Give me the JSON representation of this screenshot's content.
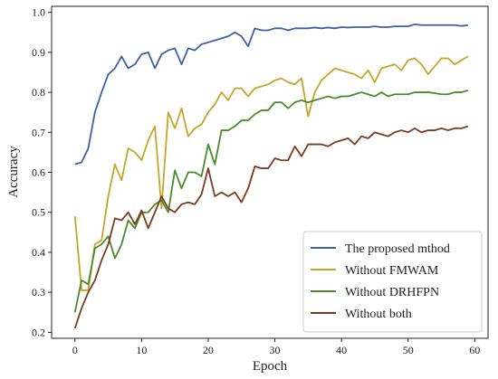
{
  "chart_data": {
    "type": "line",
    "xlabel": "Epoch",
    "ylabel": "Accuracy",
    "xlim": [
      -3.5,
      62
    ],
    "ylim": [
      0.185,
      1.015
    ],
    "xticks": [
      0,
      10,
      20,
      30,
      40,
      50,
      60
    ],
    "yticks": [
      0.2,
      0.3,
      0.4,
      0.5,
      0.6,
      0.7,
      0.8,
      0.9,
      1.0
    ],
    "ytick_labels": [
      "0.2",
      "0.3",
      "0.4",
      "0.5",
      "0.6",
      "0.7",
      "0.8",
      "0.9",
      "1.0"
    ],
    "grid": false,
    "legend_position": "bottom-right",
    "x": [
      0,
      1,
      2,
      3,
      4,
      5,
      6,
      7,
      8,
      9,
      10,
      11,
      12,
      13,
      14,
      15,
      16,
      17,
      18,
      19,
      20,
      21,
      22,
      23,
      24,
      25,
      26,
      27,
      28,
      29,
      30,
      31,
      32,
      33,
      34,
      35,
      36,
      37,
      38,
      39,
      40,
      41,
      42,
      43,
      44,
      45,
      46,
      47,
      48,
      49,
      50,
      51,
      52,
      53,
      54,
      55,
      56,
      57,
      58,
      59
    ],
    "series": [
      {
        "name": "The proposed mthod",
        "color": "#3f5ea8",
        "values": [
          0.62,
          0.625,
          0.66,
          0.75,
          0.8,
          0.845,
          0.86,
          0.89,
          0.86,
          0.87,
          0.895,
          0.9,
          0.86,
          0.895,
          0.905,
          0.91,
          0.87,
          0.91,
          0.905,
          0.92,
          0.925,
          0.93,
          0.935,
          0.94,
          0.95,
          0.94,
          0.915,
          0.96,
          0.955,
          0.955,
          0.96,
          0.96,
          0.955,
          0.96,
          0.96,
          0.96,
          0.962,
          0.96,
          0.962,
          0.96,
          0.963,
          0.962,
          0.963,
          0.963,
          0.963,
          0.965,
          0.963,
          0.963,
          0.965,
          0.965,
          0.965,
          0.97,
          0.968,
          0.968,
          0.968,
          0.968,
          0.968,
          0.968,
          0.966,
          0.968
        ]
      },
      {
        "name": "Without FMWAM",
        "color": "#c6a42a",
        "values": [
          0.49,
          0.305,
          0.305,
          0.42,
          0.43,
          0.54,
          0.62,
          0.58,
          0.66,
          0.65,
          0.63,
          0.68,
          0.715,
          0.51,
          0.75,
          0.71,
          0.76,
          0.69,
          0.71,
          0.72,
          0.75,
          0.77,
          0.8,
          0.78,
          0.81,
          0.81,
          0.79,
          0.81,
          0.815,
          0.82,
          0.83,
          0.835,
          0.825,
          0.82,
          0.835,
          0.74,
          0.8,
          0.83,
          0.845,
          0.86,
          0.855,
          0.85,
          0.845,
          0.835,
          0.855,
          0.825,
          0.86,
          0.865,
          0.87,
          0.855,
          0.88,
          0.885,
          0.87,
          0.845,
          0.865,
          0.885,
          0.885,
          0.87,
          0.88,
          0.89
        ]
      },
      {
        "name": "Without DRHFPN",
        "color": "#4a8a2a",
        "values": [
          0.25,
          0.33,
          0.32,
          0.41,
          0.42,
          0.44,
          0.385,
          0.42,
          0.48,
          0.46,
          0.5,
          0.5,
          0.52,
          0.53,
          0.5,
          0.605,
          0.56,
          0.6,
          0.6,
          0.59,
          0.67,
          0.62,
          0.705,
          0.705,
          0.715,
          0.73,
          0.73,
          0.745,
          0.755,
          0.755,
          0.775,
          0.775,
          0.76,
          0.775,
          0.78,
          0.775,
          0.78,
          0.785,
          0.79,
          0.785,
          0.79,
          0.79,
          0.795,
          0.8,
          0.795,
          0.79,
          0.8,
          0.79,
          0.795,
          0.795,
          0.795,
          0.8,
          0.8,
          0.8,
          0.798,
          0.795,
          0.795,
          0.8,
          0.8,
          0.805
        ]
      },
      {
        "name": "Without both",
        "color": "#7a3b22",
        "values": [
          0.21,
          0.26,
          0.3,
          0.33,
          0.38,
          0.42,
          0.485,
          0.48,
          0.5,
          0.47,
          0.505,
          0.46,
          0.5,
          0.54,
          0.51,
          0.5,
          0.52,
          0.525,
          0.52,
          0.545,
          0.61,
          0.54,
          0.55,
          0.54,
          0.55,
          0.525,
          0.56,
          0.615,
          0.61,
          0.61,
          0.635,
          0.63,
          0.63,
          0.665,
          0.64,
          0.67,
          0.67,
          0.67,
          0.665,
          0.675,
          0.68,
          0.685,
          0.67,
          0.69,
          0.685,
          0.7,
          0.695,
          0.69,
          0.7,
          0.705,
          0.7,
          0.71,
          0.7,
          0.705,
          0.705,
          0.71,
          0.705,
          0.71,
          0.71,
          0.715
        ]
      }
    ]
  }
}
